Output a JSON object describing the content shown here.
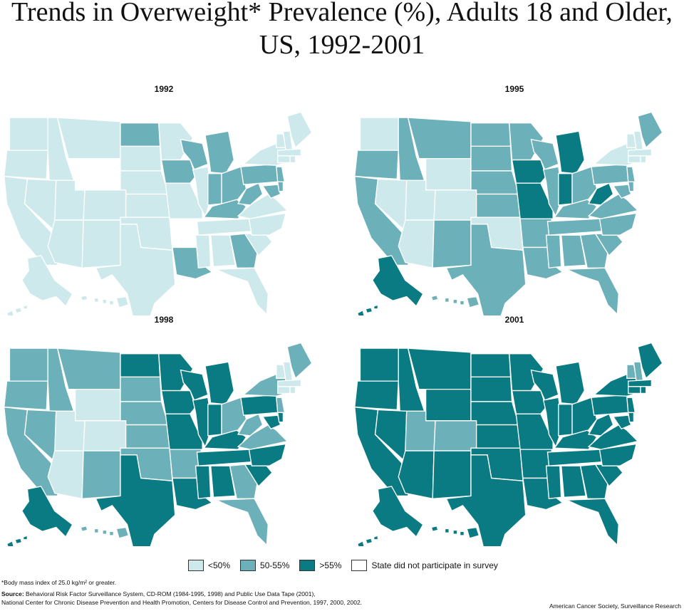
{
  "title": "Trends in Overweight* Prevalence (%), Adults 18 and Older, US, 1992-2001",
  "colors": {
    "low": "#cde9ec",
    "mid": "#6cb0b9",
    "high": "#0a7b83",
    "none": "#ffffff",
    "border": "#ffffff",
    "stroke": "#555555"
  },
  "maps": [
    {
      "year": "1992",
      "default": "low",
      "states": {
        "WY": "none",
        "AR": "none",
        "ND": "mid",
        "WI": "mid",
        "IA": "mid",
        "MI": "mid",
        "OH": "mid",
        "IN": "mid",
        "KY": "mid",
        "WV": "mid",
        "PA": "mid",
        "LA": "mid",
        "GA": "mid",
        "MD": "mid",
        "DE": "mid",
        "NJ": "mid"
      }
    },
    {
      "year": "1995",
      "default": "mid",
      "states": {
        "WA": "low",
        "NV": "low",
        "UT": "low",
        "AZ": "low",
        "WY": "low",
        "CO": "low",
        "OK": "low",
        "NY": "low",
        "VT": "low",
        "NH": "low",
        "MA": "low",
        "CT": "low",
        "RI": "low",
        "IA": "high",
        "MO": "high",
        "MI": "high",
        "IN": "high",
        "WV": "high",
        "AK": "high"
      }
    },
    {
      "year": "1998",
      "default": "mid",
      "states": {
        "WY": "low",
        "CO": "low",
        "UT": "low",
        "AZ": "low",
        "VT": "low",
        "NH": "low",
        "MA": "low",
        "CT": "low",
        "RI": "low",
        "ND": "high",
        "MN": "high",
        "WI": "high",
        "IA": "high",
        "MO": "high",
        "IL": "high",
        "IN": "high",
        "MI": "high",
        "KY": "high",
        "TX": "high",
        "LA": "high",
        "MS": "high",
        "AL": "high",
        "TN": "high",
        "NC": "high",
        "SC": "high",
        "PA": "high",
        "MD": "high",
        "DE": "high",
        "AK": "high"
      }
    },
    {
      "year": "2001",
      "default": "high",
      "states": {
        "UT": "mid",
        "CO": "mid",
        "VT": "mid",
        "NH": "mid"
      }
    }
  ],
  "legend": [
    {
      "label": "<50%",
      "key": "low"
    },
    {
      "label": "50-55%",
      "key": "mid"
    },
    {
      "label": ">55%",
      "key": "high"
    },
    {
      "label": "State did not participate in survey",
      "key": "none"
    }
  ],
  "footnote": "*Body mass index of 25.0 kg/m² or greater.",
  "source_label": "Source:",
  "source_line1": "Behavioral Risk Factor Surveillance System, CD-ROM (1984-1995, 1998) and Public Use Data Tape (2001),",
  "source_line2": "National Center for Chronic Disease Prevention and Health Promotion, Centers for Disease Control and Prevention, 1997, 2000, 2002.",
  "credit": "American Cancer Society, Surveillance Research"
}
